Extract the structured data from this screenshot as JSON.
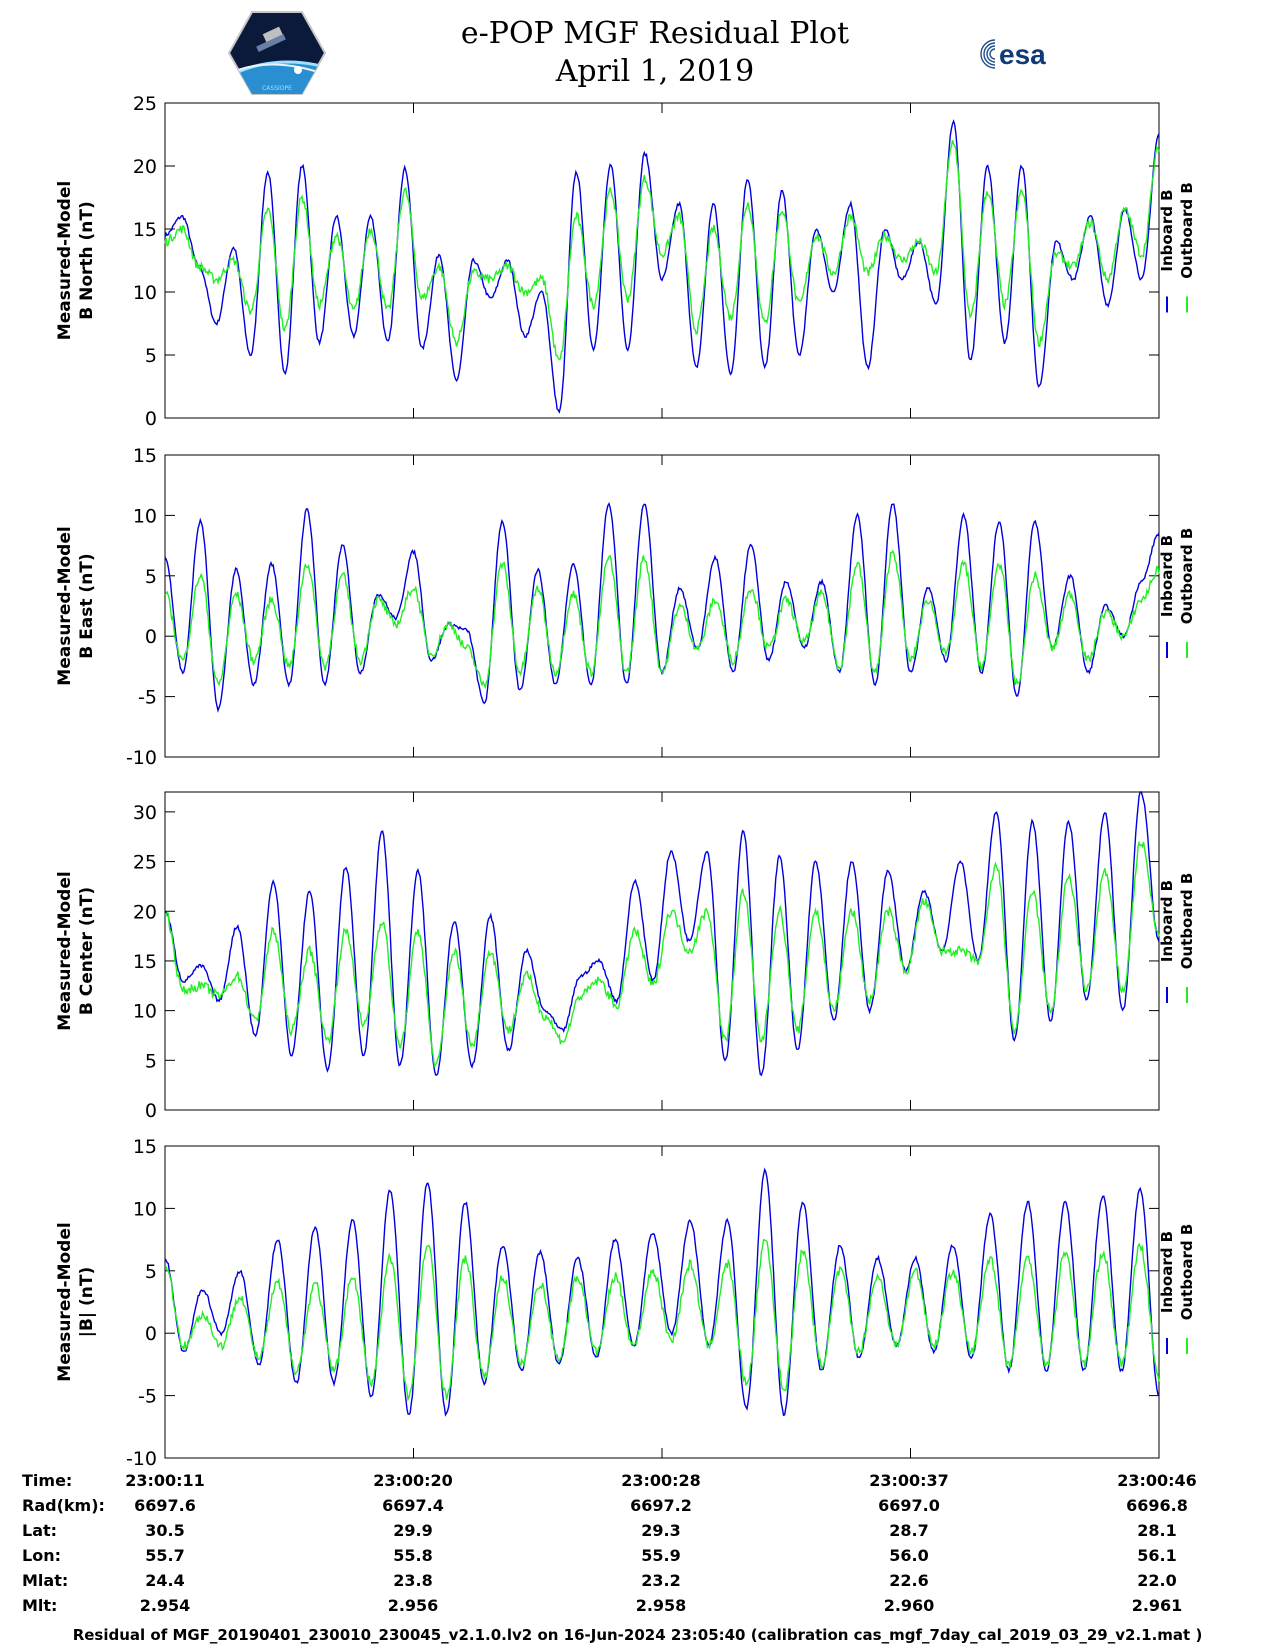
{
  "header": {
    "title_line1": "e-POP MGF Residual Plot",
    "title_line2": "April 1, 2019",
    "logo_left": "CASSIOPE",
    "logo_right": "esa"
  },
  "colors": {
    "inboard": "#0000dd",
    "outboard": "#22ee22",
    "axis": "#000000"
  },
  "chart_data": [
    {
      "type": "line",
      "ylabel": [
        "Measured-Model",
        "B North (nT)"
      ],
      "ylim": [
        0,
        25
      ],
      "yticks": [
        0,
        5,
        10,
        15,
        20,
        25
      ],
      "legend": [
        "Inboard B",
        "Outboard B"
      ],
      "xlim": [
        0,
        35
      ],
      "series": [
        {
          "name": "Inboard B",
          "values": [
            14.5,
            16.0,
            12.0,
            7.5,
            13.5,
            5.0,
            19.5,
            3.5,
            20.0,
            6.0,
            16.0,
            6.5,
            16.0,
            6.0,
            19.8,
            5.5,
            13.0,
            3.0,
            12.5,
            9.5,
            12.5,
            6.5,
            10.0,
            0.5,
            19.5,
            5.5,
            20.0,
            5.5,
            21.0,
            11.0,
            17.0,
            4.0,
            17.0,
            3.5,
            19.0,
            4.0,
            18.0,
            5.0,
            15.0,
            10.0,
            17.0,
            4.0,
            15.0,
            11.0,
            14.0,
            9.0,
            23.5,
            4.5,
            20.0,
            6.0,
            20.0,
            2.5,
            14.0,
            11.0,
            16.0,
            9.0,
            16.5,
            11.0,
            22.5
          ]
        },
        {
          "name": "Outboard B",
          "values": [
            14.0,
            15.0,
            12.0,
            11.0,
            12.5,
            8.5,
            16.5,
            7.0,
            17.5,
            9.0,
            14.5,
            8.5,
            15.0,
            8.5,
            18.0,
            9.5,
            12.0,
            6.0,
            11.5,
            11.0,
            12.0,
            10.0,
            11.0,
            4.5,
            16.0,
            9.0,
            18.0,
            9.5,
            19.0,
            13.0,
            16.0,
            7.0,
            15.0,
            8.0,
            17.0,
            7.5,
            16.5,
            9.0,
            14.5,
            11.5,
            16.0,
            11.5,
            14.5,
            12.5,
            14.0,
            11.5,
            22.0,
            8.0,
            18.0,
            9.0,
            18.0,
            6.0,
            13.0,
            12.0,
            15.5,
            11.0,
            16.5,
            13.0,
            21.5
          ]
        }
      ]
    },
    {
      "type": "line",
      "ylabel": [
        "Measured-Model",
        "B East (nT)"
      ],
      "ylim": [
        -10,
        15
      ],
      "yticks": [
        -10,
        -5,
        0,
        5,
        10,
        15
      ],
      "legend": [
        "Inboard B",
        "Outboard B"
      ],
      "xlim": [
        0,
        35
      ],
      "series": [
        {
          "name": "Inboard B",
          "values": [
            6.5,
            -3.0,
            9.5,
            -6.0,
            5.5,
            -4.0,
            6.0,
            -4.0,
            10.5,
            -4.0,
            7.5,
            -3.0,
            3.5,
            1.5,
            7.0,
            -2.0,
            1.0,
            0.5,
            -5.5,
            9.5,
            -4.5,
            5.5,
            -4.0,
            6.0,
            -4.0,
            11.0,
            -4.0,
            11.0,
            -3.0,
            4.0,
            -1.0,
            6.5,
            -3.0,
            7.5,
            -2.0,
            4.5,
            -1.0,
            4.5,
            -3.0,
            10.0,
            -4.0,
            11.0,
            -3.0,
            4.0,
            -2.0,
            10.0,
            -3.0,
            9.5,
            -5.0,
            9.5,
            -1.0,
            5.0,
            -3.0,
            2.5,
            0.0,
            4.5,
            8.5
          ]
        },
        {
          "name": "Outboard B",
          "values": [
            3.5,
            -2.0,
            5.0,
            -4.0,
            3.5,
            -2.0,
            3.0,
            -2.5,
            6.0,
            -2.5,
            5.0,
            -2.0,
            3.0,
            1.0,
            4.0,
            -1.5,
            1.0,
            -1.0,
            -4.0,
            6.0,
            -3.0,
            4.0,
            -3.0,
            3.5,
            -3.0,
            6.5,
            -3.0,
            6.5,
            -3.0,
            2.5,
            -1.0,
            3.0,
            -2.0,
            4.0,
            -1.0,
            3.0,
            -0.5,
            3.5,
            -2.5,
            6.0,
            -3.0,
            7.0,
            -2.0,
            3.0,
            -1.5,
            6.0,
            -2.5,
            6.0,
            -4.0,
            5.0,
            -1.0,
            3.5,
            -2.0,
            2.0,
            0.0,
            3.0,
            5.5
          ]
        }
      ]
    },
    {
      "type": "line",
      "ylabel": [
        "Measured-Model",
        "B Center (nT)"
      ],
      "ylim": [
        0,
        32
      ],
      "yticks": [
        0,
        5,
        10,
        15,
        20,
        25,
        30
      ],
      "legend": [
        "Inboard B",
        "Outboard B"
      ],
      "xlim": [
        0,
        35
      ],
      "series": [
        {
          "name": "Inboard B",
          "values": [
            20.0,
            13.0,
            14.5,
            11.0,
            18.5,
            7.5,
            23.0,
            5.5,
            22.0,
            4.0,
            24.5,
            5.5,
            28.0,
            4.5,
            24.0,
            3.5,
            19.0,
            4.5,
            19.5,
            6.0,
            16.0,
            10.0,
            8.0,
            13.5,
            15.0,
            11.0,
            23.0,
            13.0,
            26.0,
            17.0,
            26.0,
            5.0,
            28.0,
            3.5,
            25.5,
            6.0,
            25.0,
            9.0,
            25.0,
            10.0,
            24.0,
            14.0,
            22.0,
            16.0,
            25.0,
            15.0,
            30.0,
            7.0,
            29.0,
            9.0,
            29.0,
            11.0,
            30.0,
            10.0,
            32.0,
            17.0
          ]
        },
        {
          "name": "Outboard B",
          "values": [
            20.0,
            12.0,
            12.5,
            11.5,
            13.5,
            9.0,
            18.0,
            8.0,
            16.0,
            7.0,
            18.0,
            8.5,
            19.0,
            6.5,
            18.0,
            4.5,
            16.0,
            6.5,
            16.0,
            8.0,
            13.5,
            9.5,
            7.0,
            11.5,
            13.0,
            10.5,
            18.0,
            12.5,
            20.0,
            16.0,
            20.0,
            7.0,
            22.0,
            7.0,
            20.0,
            8.0,
            20.0,
            10.0,
            20.0,
            11.0,
            20.0,
            14.0,
            21.0,
            16.0,
            16.0,
            15.0,
            24.5,
            8.0,
            22.0,
            10.0,
            23.5,
            12.0,
            24.0,
            12.0,
            27.0,
            17.5
          ]
        }
      ]
    },
    {
      "type": "line",
      "ylabel": [
        "Measured-Model",
        "|B| (nT)"
      ],
      "ylim": [
        -10,
        15
      ],
      "yticks": [
        -10,
        -5,
        0,
        5,
        10,
        15
      ],
      "legend": [
        "Inboard B",
        "Outboard B"
      ],
      "xlim": [
        0,
        35
      ],
      "series": [
        {
          "name": "Inboard B",
          "values": [
            6.0,
            -1.5,
            3.5,
            0.0,
            5.0,
            -2.5,
            7.5,
            -4.0,
            8.5,
            -4.0,
            9.0,
            -5.0,
            11.5,
            -6.5,
            12.0,
            -6.5,
            10.5,
            -4.0,
            7.0,
            -3.0,
            6.5,
            -2.5,
            6.0,
            -2.0,
            7.5,
            -1.0,
            8.0,
            0.0,
            9.0,
            -1.0,
            9.0,
            -6.0,
            13.0,
            -6.5,
            10.5,
            -3.0,
            7.0,
            -2.0,
            6.0,
            -1.0,
            6.0,
            -1.5,
            7.0,
            -2.0,
            9.5,
            -3.0,
            10.5,
            -3.0,
            10.5,
            -3.0,
            11.0,
            -3.0,
            11.5,
            -5.0
          ]
        },
        {
          "name": "Outboard B",
          "values": [
            5.5,
            -1.0,
            1.5,
            -1.0,
            3.0,
            -2.0,
            4.0,
            -3.0,
            4.0,
            -3.0,
            4.5,
            -4.0,
            6.0,
            -5.0,
            7.0,
            -5.0,
            6.0,
            -3.5,
            4.5,
            -2.5,
            4.0,
            -2.0,
            4.5,
            -1.5,
            4.5,
            -1.0,
            5.0,
            -0.5,
            5.5,
            -1.0,
            5.5,
            -4.0,
            7.5,
            -4.5,
            6.5,
            -2.5,
            5.0,
            -1.5,
            4.5,
            -1.0,
            5.0,
            -1.0,
            5.0,
            -1.5,
            6.0,
            -2.5,
            6.0,
            -2.5,
            6.5,
            -2.5,
            6.5,
            -2.5,
            7.0,
            -3.5
          ]
        }
      ]
    }
  ],
  "table": {
    "row_labels": [
      "Time:",
      "Rad(km):",
      "Lat:",
      "Lon:",
      "Mlat:",
      "Mlt:"
    ],
    "columns": [
      [
        "23:00:11",
        "6697.6",
        "30.5",
        "55.7",
        "24.4",
        "2.954"
      ],
      [
        "23:00:20",
        "6697.4",
        "29.9",
        "55.8",
        "23.8",
        "2.956"
      ],
      [
        "23:00:28",
        "6697.2",
        "29.3",
        "55.9",
        "23.2",
        "2.958"
      ],
      [
        "23:00:37",
        "6697.0",
        "28.7",
        "56.0",
        "22.6",
        "2.960"
      ],
      [
        "23:00:46",
        "6696.8",
        "28.1",
        "56.1",
        "22.0",
        "2.961"
      ]
    ]
  },
  "footer": "Residual of MGF_20190401_230010_230045_v2.1.0.lv2 on 16-Jun-2024 23:05:40 (calibration cas_mgf_7day_cal_2019_03_29_v2.1.mat )"
}
